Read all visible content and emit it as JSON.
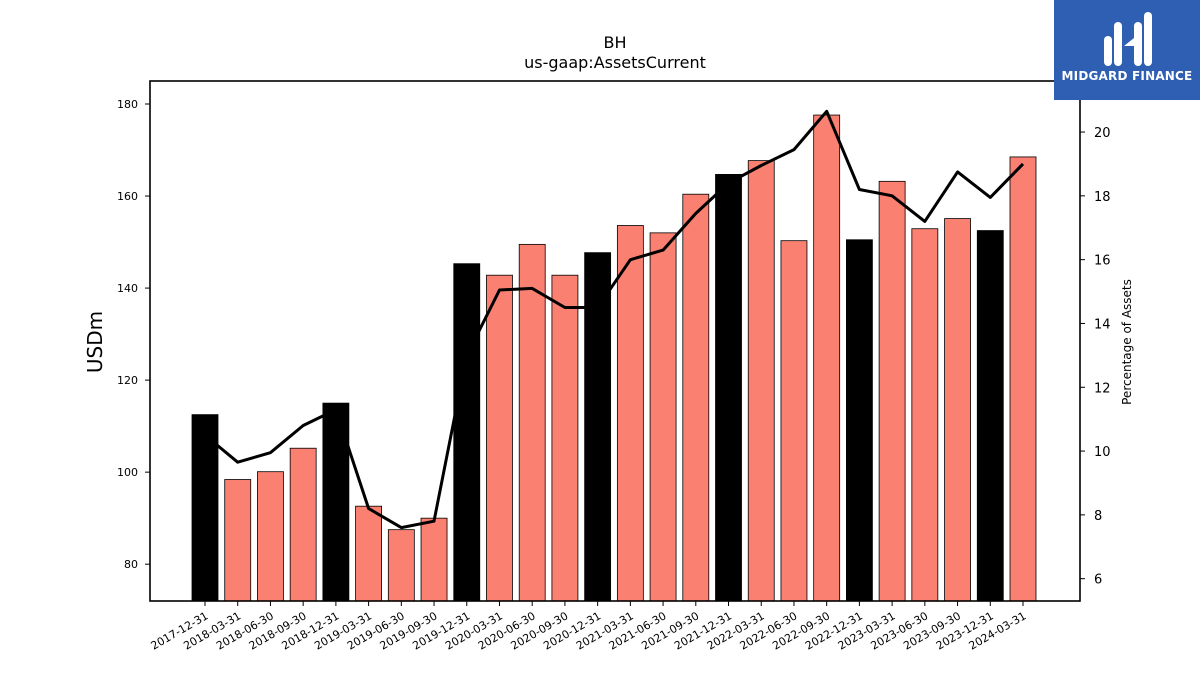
{
  "chart_data": {
    "type": "bar+line",
    "title": "BH",
    "subtitle": "us-gaap:AssetsCurrent",
    "ylabel": "USDm",
    "y2label": "Percentage of Assets",
    "ylim": [
      72,
      185
    ],
    "y2lim": [
      5.3,
      21.6
    ],
    "yticks": [
      80,
      100,
      120,
      140,
      160,
      180
    ],
    "y2ticks": [
      6,
      8,
      10,
      12,
      14,
      16,
      18,
      20
    ],
    "categories": [
      "2017-12-31",
      "2018-03-31",
      "2018-06-30",
      "2018-09-30",
      "2018-12-31",
      "2019-03-31",
      "2019-06-30",
      "2019-09-30",
      "2019-12-31",
      "2020-03-31",
      "2020-06-30",
      "2020-09-30",
      "2020-12-31",
      "2021-03-31",
      "2021-06-30",
      "2021-09-30",
      "2021-12-31",
      "2022-03-31",
      "2022-06-30",
      "2022-09-30",
      "2022-12-31",
      "2023-03-31",
      "2023-06-30",
      "2023-09-30",
      "2023-12-31",
      "2024-03-31"
    ],
    "values": [
      112.5,
      98.4,
      100.1,
      105.2,
      115.0,
      92.6,
      87.5,
      90.0,
      145.3,
      142.8,
      149.5,
      142.8,
      147.7,
      153.6,
      152.0,
      160.4,
      164.7,
      167.7,
      150.3,
      177.6,
      150.5,
      163.2,
      152.9,
      155.1,
      152.5,
      168.5
    ],
    "bar_colors": [
      "#000000",
      "#fa8072",
      "#fa8072",
      "#fa8072",
      "#000000",
      "#fa8072",
      "#fa8072",
      "#fa8072",
      "#000000",
      "#fa8072",
      "#fa8072",
      "#fa8072",
      "#000000",
      "#fa8072",
      "#fa8072",
      "#fa8072",
      "#000000",
      "#fa8072",
      "#fa8072",
      "#fa8072",
      "#000000",
      "#fa8072",
      "#fa8072",
      "#fa8072",
      "#000000",
      "#fa8072"
    ],
    "line_values": [
      10.5,
      9.65,
      9.95,
      10.8,
      11.3,
      8.2,
      7.6,
      7.8,
      13.0,
      15.05,
      15.1,
      14.5,
      14.5,
      16.0,
      16.3,
      17.45,
      18.4,
      18.95,
      19.45,
      20.65,
      18.2,
      18.0,
      17.2,
      18.75,
      17.95,
      19.0
    ],
    "line_color": "#000000"
  },
  "logo": {
    "text": "MIDGARD FINANCE",
    "background": "#2e5fb3"
  }
}
